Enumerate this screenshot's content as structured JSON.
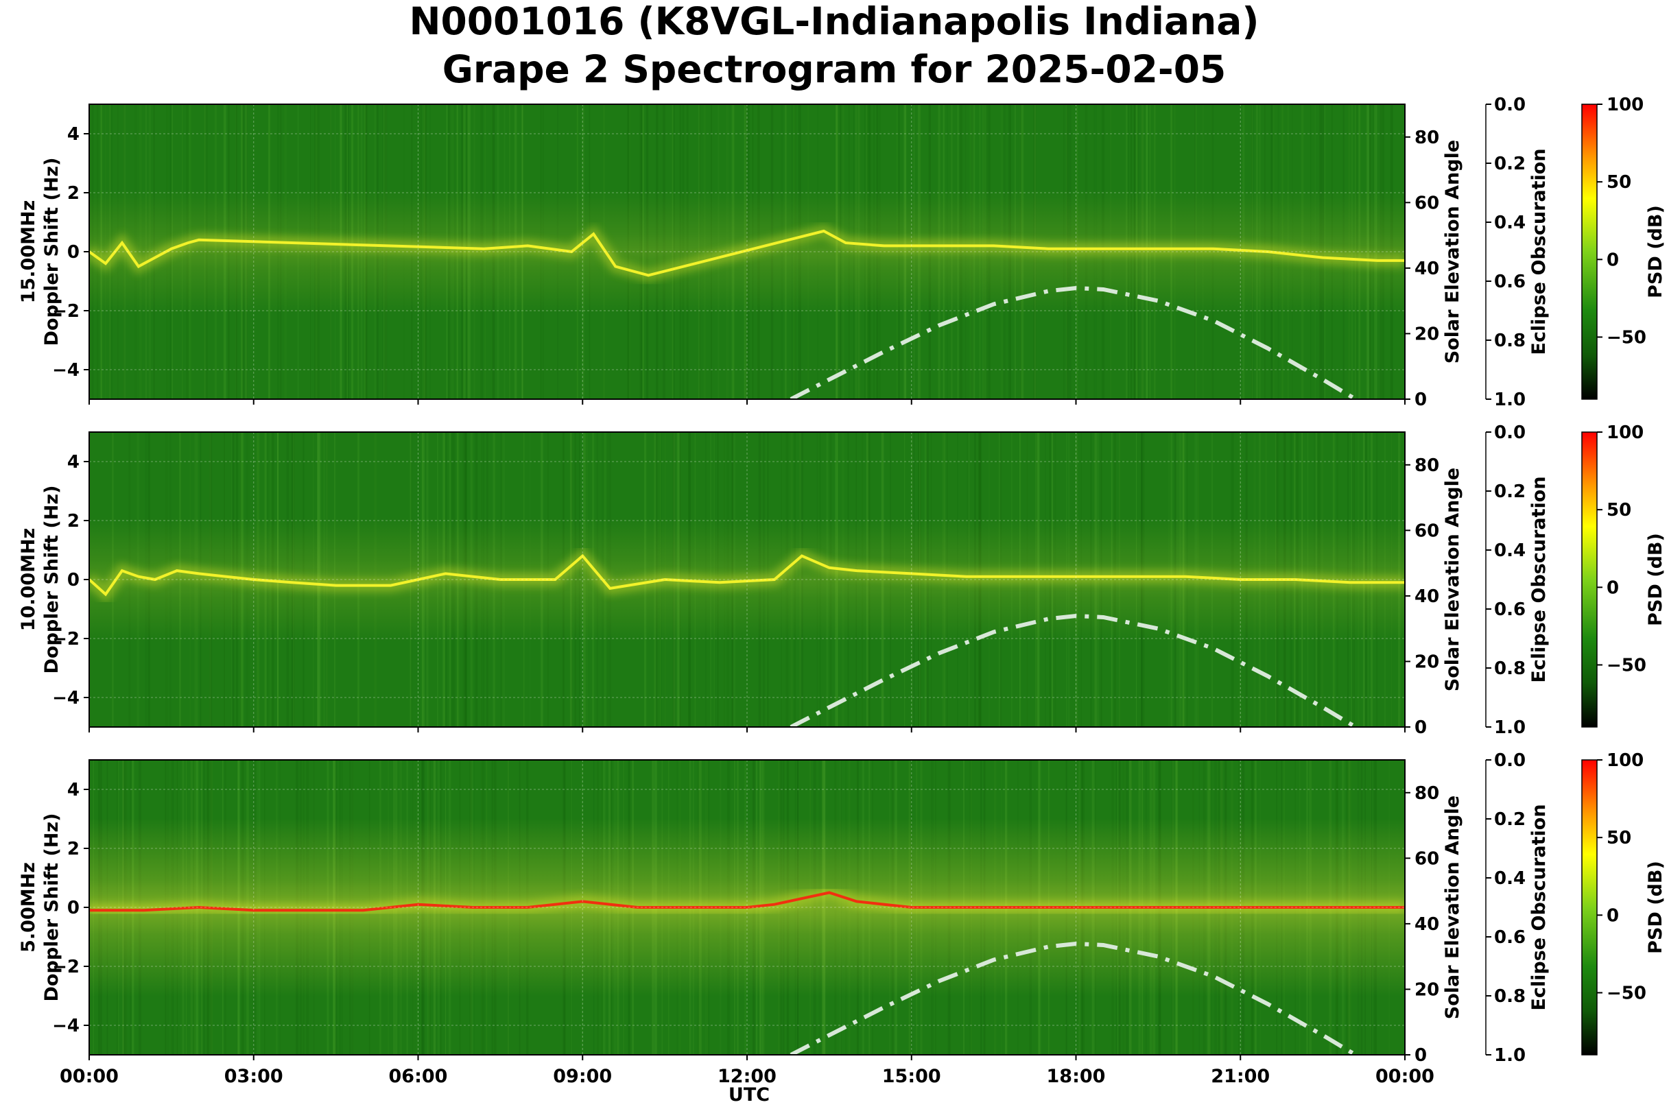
{
  "title_line1": "N0001016 (K8VGL-Indianapolis Indiana)",
  "title_line2": "Grape 2 Spectrogram for 2025-02-05",
  "colors": {
    "background_green": "#1e7a14",
    "trace_yellow": "#f2f22a",
    "trace_red": "#f03010",
    "sun_curve": "#d8e8d8"
  },
  "chart_data": [
    {
      "type": "heatmap",
      "name": "15.00MHz",
      "ylabel": "15.00MHz\nDoppler Shift (Hz)",
      "ylim": [
        -5,
        5
      ],
      "yticks": [
        "4",
        "2",
        "0",
        "−2",
        "−4"
      ],
      "xlim_hours": [
        0,
        24
      ],
      "x_tick_labels": [
        "00:00",
        "03:00",
        "06:00",
        "09:00",
        "12:00",
        "15:00",
        "18:00",
        "21:00",
        "00:00"
      ],
      "xlabel": "",
      "trace": {
        "x_hours": [
          0.0,
          0.3,
          0.6,
          0.9,
          1.2,
          1.5,
          1.8,
          2.0,
          7.2,
          8.0,
          8.8,
          9.2,
          9.6,
          10.2,
          13.4,
          13.8,
          14.5,
          15.5,
          16.5,
          17.5,
          18.5,
          19.5,
          20.5,
          21.5,
          22.5,
          23.5,
          24.0
        ],
        "y_hz": [
          0.0,
          -0.4,
          0.3,
          -0.5,
          -0.2,
          0.1,
          0.3,
          0.4,
          0.1,
          0.2,
          0.0,
          0.6,
          -0.5,
          -0.8,
          0.7,
          0.3,
          0.2,
          0.2,
          0.2,
          0.1,
          0.1,
          0.1,
          0.1,
          0.0,
          -0.2,
          -0.3,
          -0.3
        ]
      },
      "solar_elevation_axis": {
        "label": "Solar Elevation Angle",
        "ylim": [
          0,
          90
        ],
        "ticks": [
          "0",
          "20",
          "40",
          "60",
          "80"
        ]
      },
      "eclipse_axis": {
        "label": "Eclipse Obscuration",
        "ylim": [
          0.0,
          1.0
        ],
        "ticks": [
          "0.0",
          "0.2",
          "0.4",
          "0.6",
          "0.8",
          "1.0"
        ]
      },
      "colorbar": {
        "label": "PSD (dB)",
        "ticks": [
          "100",
          "50",
          "0",
          "−50"
        ]
      }
    },
    {
      "type": "heatmap",
      "name": "10.00MHz",
      "ylabel": "10.00MHz\nDoppler Shift (Hz)",
      "ylim": [
        -5,
        5
      ],
      "yticks": [
        "4",
        "2",
        "0",
        "−2",
        "−4"
      ],
      "xlim_hours": [
        0,
        24
      ],
      "x_tick_labels": [
        "00:00",
        "03:00",
        "06:00",
        "09:00",
        "12:00",
        "15:00",
        "18:00",
        "21:00",
        "00:00"
      ],
      "xlabel": "",
      "trace": {
        "x_hours": [
          0.0,
          0.3,
          0.6,
          0.9,
          1.2,
          1.6,
          2.0,
          2.5,
          3.0,
          3.7,
          4.5,
          5.5,
          6.5,
          7.5,
          8.5,
          9.0,
          9.5,
          10.5,
          11.5,
          12.5,
          13.0,
          13.5,
          14.0,
          15.0,
          16.0,
          17.0,
          18.0,
          19.0,
          20.0,
          21.0,
          22.0,
          23.0,
          24.0
        ],
        "y_hz": [
          0.0,
          -0.5,
          0.3,
          0.1,
          0.0,
          0.3,
          0.2,
          0.1,
          0.0,
          -0.1,
          -0.2,
          -0.2,
          0.2,
          0.0,
          0.0,
          0.8,
          -0.3,
          0.0,
          -0.1,
          0.0,
          0.8,
          0.4,
          0.3,
          0.2,
          0.1,
          0.1,
          0.1,
          0.1,
          0.1,
          0.0,
          0.0,
          -0.1,
          -0.1
        ]
      },
      "solar_elevation_axis": {
        "label": "Solar Elevation Angle",
        "ylim": [
          0,
          90
        ],
        "ticks": [
          "0",
          "20",
          "40",
          "60",
          "80"
        ]
      },
      "eclipse_axis": {
        "label": "Eclipse Obscuration",
        "ylim": [
          0.0,
          1.0
        ],
        "ticks": [
          "0.0",
          "0.2",
          "0.4",
          "0.6",
          "0.8",
          "1.0"
        ]
      },
      "colorbar": {
        "label": "PSD (dB)",
        "ticks": [
          "100",
          "50",
          "0",
          "−50"
        ]
      }
    },
    {
      "type": "heatmap",
      "name": "5.00MHz",
      "ylabel": "5.00MHz\nDoppler Shift (Hz)",
      "ylim": [
        -5,
        5
      ],
      "yticks": [
        "4",
        "2",
        "0",
        "−2",
        "−4"
      ],
      "xlim_hours": [
        0,
        24
      ],
      "x_tick_labels": [
        "00:00",
        "03:00",
        "06:00",
        "09:00",
        "12:00",
        "15:00",
        "18:00",
        "21:00",
        "00:00"
      ],
      "xlabel": "UTC",
      "trace": {
        "x_hours": [
          0.0,
          1.0,
          2.0,
          3.0,
          4.0,
          5.0,
          6.0,
          7.0,
          8.0,
          9.0,
          10.0,
          11.0,
          12.0,
          12.5,
          13.0,
          13.5,
          14.0,
          15.0,
          18.0,
          21.0,
          24.0
        ],
        "y_hz": [
          -0.1,
          -0.1,
          0.0,
          -0.1,
          -0.1,
          -0.1,
          0.1,
          0.0,
          0.0,
          0.2,
          0.0,
          0.0,
          0.0,
          0.1,
          0.3,
          0.5,
          0.2,
          0.0,
          0.0,
          0.0,
          0.0
        ]
      },
      "solar_elevation_axis": {
        "label": "Solar Elevation Angle",
        "ylim": [
          0,
          90
        ],
        "ticks": [
          "0",
          "20",
          "40",
          "60",
          "80"
        ]
      },
      "eclipse_axis": {
        "label": "Eclipse Obscuration",
        "ylim": [
          0.0,
          1.0
        ],
        "ticks": [
          "0.0",
          "0.2",
          "0.4",
          "0.6",
          "0.8",
          "1.0"
        ]
      },
      "colorbar": {
        "label": "PSD (dB)",
        "ticks": [
          "100",
          "50",
          "0",
          "−50"
        ]
      }
    }
  ],
  "solar_elevation_curve": {
    "x_hours": [
      12.8,
      13.5,
      14.5,
      15.5,
      16.5,
      17.5,
      18.0,
      18.5,
      19.5,
      20.5,
      21.5,
      22.5,
      23.1
    ],
    "y_deg": [
      0,
      6,
      14.5,
      22.5,
      29,
      33,
      33.9,
      33.5,
      30,
      24,
      15.5,
      6,
      0
    ]
  }
}
